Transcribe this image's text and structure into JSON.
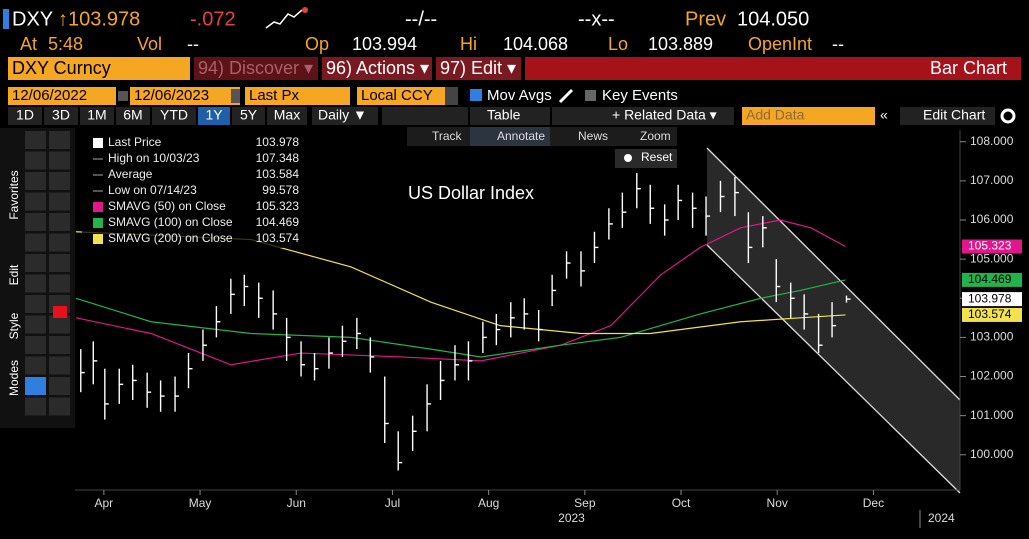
{
  "header": {
    "ticker": "DXY",
    "last": "↑103.978",
    "change": "-.072",
    "bid_ask": "--/--",
    "size": "--x--",
    "prev_label": "Prev",
    "prev": "104.050",
    "time_label": "At",
    "time": "5:48",
    "vol_label": "Vol",
    "vol": "--",
    "open_label": "Op",
    "open": "103.994",
    "high_label": "Hi",
    "high": "104.068",
    "low_label": "Lo",
    "low": "103.889",
    "oi_label": "OpenInt",
    "oi": "--"
  },
  "menu": {
    "security": "DXY Curncy",
    "discover": "94) Discover ▾",
    "actions": "96) Actions ▾",
    "edit": "97) Edit ▾",
    "view": "Bar Chart"
  },
  "settings": {
    "start": "12/06/2022",
    "end": "12/06/2023",
    "field": "Last Px",
    "currency": "Local CCY",
    "mov_avgs": "Mov Avgs",
    "key_events": "Key Events"
  },
  "periods": [
    "1D",
    "3D",
    "1M",
    "6M",
    "YTD",
    "1Y",
    "5Y",
    "Max"
  ],
  "frequency": "Daily ▼",
  "table": "Table",
  "related": "+ Related Data ▾",
  "add_data": "Add Data",
  "edit_chart": "Edit Chart",
  "chart_tools": [
    "Track",
    "Annotate",
    "News",
    "Zoom"
  ],
  "reset": "Reset",
  "sidebar": [
    "Favorites",
    "Edit",
    "Style",
    "Modes"
  ],
  "legend": [
    {
      "name": "Last Price",
      "value": "103.978"
    },
    {
      "name": "High on 10/03/23",
      "value": "107.348"
    },
    {
      "name": "Average",
      "value": "103.584"
    },
    {
      "name": "Low on 07/14/23",
      "value": "99.578"
    }
  ],
  "chart_data": {
    "type": "ohlc",
    "title": "US Dollar Index",
    "xlim": [
      2.7,
      11.9
    ],
    "xticks": [
      {
        "value": 3,
        "label": "Apr"
      },
      {
        "value": 4,
        "label": "May"
      },
      {
        "value": 5,
        "label": "Jun"
      },
      {
        "value": 6,
        "label": "Jul"
      },
      {
        "value": 7,
        "label": "Aug"
      },
      {
        "value": 8,
        "label": "Sep"
      },
      {
        "value": 9,
        "label": "Oct"
      },
      {
        "value": 10,
        "label": "Nov"
      },
      {
        "value": 11,
        "label": "Dec"
      }
    ],
    "year_labels": [
      "2023",
      "2024"
    ],
    "ylim": [
      99.1,
      108.3
    ],
    "yticks": [
      {
        "value": 100,
        "label": "100.000"
      },
      {
        "value": 101,
        "label": "101.000"
      },
      {
        "value": 102,
        "label": "102.000"
      },
      {
        "value": 103,
        "label": "103.000"
      },
      {
        "value": 104,
        "label": "104.000"
      },
      {
        "value": 105,
        "label": "105.000"
      },
      {
        "value": 106,
        "label": "106.000"
      },
      {
        "value": 107,
        "label": "107.000"
      },
      {
        "value": 108,
        "label": "108.000"
      }
    ],
    "price": {
      "color": "#ffffff",
      "x": [
        2.76,
        2.89,
        3.01,
        3.16,
        3.3,
        3.45,
        3.59,
        3.74,
        3.88,
        4.03,
        4.17,
        4.32,
        4.46,
        4.61,
        4.76,
        4.9,
        5.05,
        5.19,
        5.34,
        5.48,
        5.63,
        5.77,
        5.92,
        6.06,
        6.21,
        6.36,
        6.5,
        6.65,
        6.79,
        6.94,
        7.08,
        7.23,
        7.37,
        7.52,
        7.66,
        7.81,
        7.96,
        8.1,
        8.25,
        8.39,
        8.54,
        8.68,
        8.83,
        8.97,
        9.12,
        9.26,
        9.41,
        9.56,
        9.7,
        9.85,
        9.99,
        10.14,
        10.28,
        10.43,
        10.57,
        10.72
      ],
      "values": [
        102.1,
        102.4,
        101.3,
        101.8,
        101.9,
        101.6,
        101.5,
        101.5,
        102.2,
        102.8,
        103.4,
        104.1,
        104.3,
        104.0,
        103.6,
        103.0,
        102.3,
        102.2,
        102.6,
        102.9,
        103.1,
        102.5,
        100.8,
        99.8,
        100.6,
        101.3,
        101.9,
        102.3,
        102.4,
        103.0,
        103.2,
        103.5,
        103.6,
        103.2,
        104.2,
        104.9,
        104.7,
        105.3,
        105.9,
        106.2,
        106.8,
        106.3,
        106.0,
        106.5,
        106.3,
        106.1,
        106.6,
        106.7,
        105.3,
        105.8,
        104.3,
        104.0,
        103.6,
        102.8,
        103.3,
        103.978
      ],
      "highs": [
        102.7,
        102.9,
        102.2,
        102.2,
        102.3,
        102.1,
        101.9,
        102.0,
        102.6,
        103.2,
        103.8,
        104.5,
        104.6,
        104.4,
        104.2,
        103.5,
        102.9,
        102.6,
        103.0,
        103.3,
        103.5,
        103.0,
        102.0,
        100.6,
        101.0,
        101.8,
        102.4,
        102.8,
        102.9,
        103.4,
        103.6,
        103.9,
        104.0,
        103.7,
        104.6,
        105.2,
        105.2,
        105.7,
        106.3,
        106.7,
        107.2,
        106.9,
        106.4,
        106.9,
        106.7,
        106.6,
        107.0,
        107.1,
        106.2,
        106.1,
        105.0,
        104.4,
        104.1,
        103.6,
        103.9,
        104.068
      ],
      "lows": [
        101.6,
        101.8,
        100.9,
        101.3,
        101.4,
        101.2,
        101.1,
        101.1,
        101.7,
        102.4,
        103.0,
        103.6,
        103.8,
        103.5,
        103.2,
        102.4,
        102.0,
        101.9,
        102.2,
        102.5,
        102.7,
        102.1,
        100.3,
        99.6,
        100.1,
        100.6,
        101.4,
        101.9,
        101.9,
        102.6,
        102.8,
        103.0,
        103.2,
        102.9,
        103.8,
        104.5,
        104.3,
        104.9,
        105.5,
        105.8,
        106.3,
        105.9,
        105.6,
        106.0,
        105.8,
        105.6,
        106.2,
        106.1,
        104.9,
        105.3,
        103.9,
        103.5,
        103.2,
        102.6,
        103.0,
        103.889
      ]
    },
    "series": [
      {
        "name": "SMAVG (50)  on Close",
        "legend_value": "105.323",
        "color": "#e0168a",
        "x": [
          2.71,
          3.49,
          4.32,
          5.05,
          6.09,
          6.92,
          7.75,
          8.27,
          8.79,
          9.2,
          9.62,
          10.03,
          10.35,
          10.71
        ],
        "values": [
          103.5,
          103.1,
          102.3,
          102.6,
          102.5,
          102.4,
          102.8,
          103.3,
          104.6,
          105.3,
          105.8,
          106.0,
          105.8,
          105.323
        ]
      },
      {
        "name": "SMAVG (100)  on Close",
        "legend_value": "104.469",
        "color": "#22b34a",
        "x": [
          2.71,
          3.49,
          4.53,
          5.57,
          6.4,
          6.92,
          7.75,
          8.37,
          9.2,
          9.83,
          10.24,
          10.71
        ],
        "values": [
          104.0,
          103.4,
          103.1,
          103.0,
          102.7,
          102.5,
          102.8,
          103.0,
          103.6,
          104.0,
          104.2,
          104.469
        ]
      },
      {
        "name": "SMAVG (200)  on Close",
        "legend_value": "103.574",
        "color": "#f2e34c",
        "x": [
          2.71,
          4.53,
          5.57,
          6.4,
          7.12,
          7.96,
          8.68,
          9.62,
          10.24,
          10.71
        ],
        "values": [
          105.7,
          105.5,
          104.8,
          103.9,
          103.3,
          103.1,
          103.1,
          103.4,
          103.5,
          103.574
        ]
      }
    ],
    "price_tags": [
      {
        "value": 105.323,
        "color": "#e0168a",
        "text_color": "#ffffff"
      },
      {
        "value": 104.469,
        "color": "#22b34a",
        "text_color": "#000000"
      },
      {
        "value": 103.978,
        "color": "#ffffff",
        "text_color": "#000000"
      },
      {
        "value": 103.574,
        "color": "#f2e34c",
        "text_color": "#000000"
      }
    ]
  }
}
